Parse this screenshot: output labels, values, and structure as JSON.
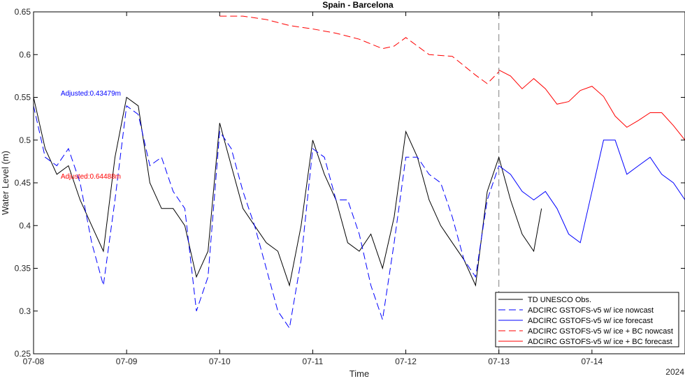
{
  "chart_data": {
    "type": "line",
    "title": "Spain - Barcelona",
    "xlabel": "Time",
    "ylabel": "Water Level (m)",
    "year_label": "2024",
    "xlim": [
      "2024-07-08 00:00",
      "2024-07-15 00:00"
    ],
    "ylim": [
      0.25,
      0.65
    ],
    "x_ticks": [
      "07-08",
      "07-09",
      "07-10",
      "07-11",
      "07-12",
      "07-13",
      "07-14"
    ],
    "y_ticks": [
      "0.25",
      "0.3",
      "0.35",
      "0.4",
      "0.45",
      "0.5",
      "0.55",
      "0.6",
      "0.65"
    ],
    "grid": false,
    "legend_position": "bottom-right",
    "nowcast_forecast_divider": "2024-07-13 00:00",
    "annotations": [
      {
        "text": "Adjusted:0.43479m",
        "color": "#0000ff",
        "x": "2024-07-08 07:00",
        "y": 0.552
      },
      {
        "text": "Adjusted:0.64488m",
        "color": "#ff0000",
        "x": "2024-07-08 07:00",
        "y": 0.455
      }
    ],
    "series": [
      {
        "name": "TD UNESCO Obs.",
        "color": "#000000",
        "dash": "solid",
        "x": [
          "2024-07-08 00:00",
          "2024-07-08 03:00",
          "2024-07-08 06:00",
          "2024-07-08 09:00",
          "2024-07-08 12:00",
          "2024-07-08 15:00",
          "2024-07-08 18:00",
          "2024-07-08 21:00",
          "2024-07-09 00:00",
          "2024-07-09 03:00",
          "2024-07-09 06:00",
          "2024-07-09 09:00",
          "2024-07-09 12:00",
          "2024-07-09 15:00",
          "2024-07-09 18:00",
          "2024-07-09 21:00",
          "2024-07-10 00:00",
          "2024-07-10 03:00",
          "2024-07-10 06:00",
          "2024-07-10 09:00",
          "2024-07-10 12:00",
          "2024-07-10 15:00",
          "2024-07-10 18:00",
          "2024-07-10 21:00",
          "2024-07-11 00:00",
          "2024-07-11 03:00",
          "2024-07-11 06:00",
          "2024-07-11 09:00",
          "2024-07-11 12:00",
          "2024-07-11 15:00",
          "2024-07-11 18:00",
          "2024-07-11 21:00",
          "2024-07-12 00:00",
          "2024-07-12 03:00",
          "2024-07-12 06:00",
          "2024-07-12 09:00",
          "2024-07-12 12:00",
          "2024-07-12 15:00",
          "2024-07-12 18:00",
          "2024-07-12 21:00",
          "2024-07-13 00:00",
          "2024-07-13 03:00",
          "2024-07-13 06:00",
          "2024-07-13 09:00",
          "2024-07-13 11:00"
        ],
        "y": [
          0.55,
          0.49,
          0.46,
          0.47,
          0.43,
          0.4,
          0.37,
          0.48,
          0.55,
          0.54,
          0.45,
          0.42,
          0.42,
          0.4,
          0.34,
          0.37,
          0.52,
          0.47,
          0.42,
          0.4,
          0.38,
          0.37,
          0.33,
          0.4,
          0.5,
          0.46,
          0.43,
          0.38,
          0.37,
          0.39,
          0.35,
          0.41,
          0.51,
          0.48,
          0.43,
          0.4,
          0.38,
          0.36,
          0.33,
          0.44,
          0.48,
          0.43,
          0.39,
          0.37,
          0.42
        ]
      },
      {
        "name": "ADCIRC GSTOFS-v5  w/ ice nowcast",
        "color": "#0000ff",
        "dash": "dashed",
        "x": [
          "2024-07-08 00:00",
          "2024-07-08 03:00",
          "2024-07-08 06:00",
          "2024-07-08 09:00",
          "2024-07-08 12:00",
          "2024-07-08 15:00",
          "2024-07-08 18:00",
          "2024-07-08 21:00",
          "2024-07-09 00:00",
          "2024-07-09 03:00",
          "2024-07-09 06:00",
          "2024-07-09 09:00",
          "2024-07-09 12:00",
          "2024-07-09 15:00",
          "2024-07-09 18:00",
          "2024-07-09 21:00",
          "2024-07-10 00:00",
          "2024-07-10 03:00",
          "2024-07-10 06:00",
          "2024-07-10 09:00",
          "2024-07-10 12:00",
          "2024-07-10 15:00",
          "2024-07-10 18:00",
          "2024-07-10 21:00",
          "2024-07-11 00:00",
          "2024-07-11 03:00",
          "2024-07-11 06:00",
          "2024-07-11 09:00",
          "2024-07-11 12:00",
          "2024-07-11 15:00",
          "2024-07-11 18:00",
          "2024-07-11 21:00",
          "2024-07-12 00:00",
          "2024-07-12 03:00",
          "2024-07-12 06:00",
          "2024-07-12 09:00",
          "2024-07-12 12:00",
          "2024-07-12 15:00",
          "2024-07-12 18:00",
          "2024-07-12 21:00",
          "2024-07-13 00:00"
        ],
        "y": [
          0.54,
          0.48,
          0.47,
          0.49,
          0.45,
          0.38,
          0.33,
          0.43,
          0.54,
          0.53,
          0.47,
          0.48,
          0.44,
          0.42,
          0.3,
          0.34,
          0.51,
          0.49,
          0.44,
          0.4,
          0.35,
          0.3,
          0.28,
          0.36,
          0.49,
          0.48,
          0.43,
          0.43,
          0.39,
          0.33,
          0.29,
          0.38,
          0.48,
          0.48,
          0.46,
          0.45,
          0.41,
          0.36,
          0.34,
          0.43,
          0.47
        ]
      },
      {
        "name": "ADCIRC GSTOFS-v5  w/ ice forecast",
        "color": "#0000ff",
        "dash": "solid",
        "x": [
          "2024-07-13 00:00",
          "2024-07-13 03:00",
          "2024-07-13 06:00",
          "2024-07-13 09:00",
          "2024-07-13 12:00",
          "2024-07-13 15:00",
          "2024-07-13 18:00",
          "2024-07-13 21:00",
          "2024-07-14 00:00",
          "2024-07-14 03:00",
          "2024-07-14 06:00",
          "2024-07-14 09:00",
          "2024-07-14 12:00",
          "2024-07-14 15:00",
          "2024-07-14 18:00",
          "2024-07-14 21:00",
          "2024-07-15 00:00"
        ],
        "y": [
          0.47,
          0.46,
          0.44,
          0.43,
          0.44,
          0.42,
          0.39,
          0.38,
          0.44,
          0.5,
          0.5,
          0.46,
          0.47,
          0.48,
          0.46,
          0.45,
          0.43
        ]
      },
      {
        "name": "ADCIRC GSTOFS-v5  w/ ice + BC nowcast",
        "color": "#ff0000",
        "dash": "dashed",
        "x": [
          "2024-07-10 00:00",
          "2024-07-10 06:00",
          "2024-07-10 12:00",
          "2024-07-10 18:00",
          "2024-07-11 00:00",
          "2024-07-11 06:00",
          "2024-07-11 12:00",
          "2024-07-11 18:00",
          "2024-07-11 21:00",
          "2024-07-12 00:00",
          "2024-07-12 06:00",
          "2024-07-12 12:00",
          "2024-07-12 18:00",
          "2024-07-12 21:00",
          "2024-07-13 00:00"
        ],
        "y": [
          0.645,
          0.645,
          0.641,
          0.634,
          0.63,
          0.625,
          0.618,
          0.607,
          0.61,
          0.62,
          0.6,
          0.598,
          0.576,
          0.566,
          0.58
        ]
      },
      {
        "name": "ADCIRC GSTOFS-v5  w/ ice + BC forecast",
        "color": "#ff0000",
        "dash": "solid",
        "x": [
          "2024-07-13 00:00",
          "2024-07-13 03:00",
          "2024-07-13 06:00",
          "2024-07-13 09:00",
          "2024-07-13 12:00",
          "2024-07-13 15:00",
          "2024-07-13 18:00",
          "2024-07-13 21:00",
          "2024-07-14 00:00",
          "2024-07-14 03:00",
          "2024-07-14 06:00",
          "2024-07-14 09:00",
          "2024-07-14 12:00",
          "2024-07-14 15:00",
          "2024-07-14 18:00",
          "2024-07-14 21:00",
          "2024-07-15 00:00"
        ],
        "y": [
          0.582,
          0.575,
          0.56,
          0.572,
          0.56,
          0.542,
          0.545,
          0.558,
          0.563,
          0.551,
          0.528,
          0.515,
          0.523,
          0.532,
          0.532,
          0.517,
          0.5
        ]
      }
    ]
  }
}
